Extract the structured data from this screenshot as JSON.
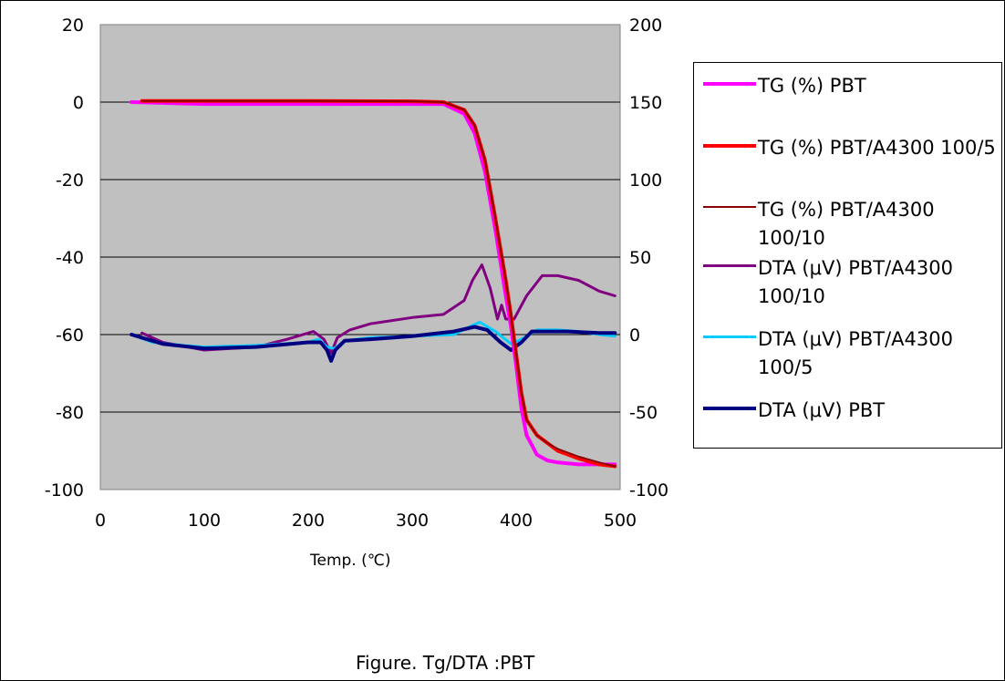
{
  "caption": "Figure. Tg/DTA :PBT",
  "chart_data": {
    "type": "line",
    "xlabel": "Temp. (℃)",
    "xlim": [
      0,
      500
    ],
    "x_ticks": [
      "0",
      "100",
      "200",
      "300",
      "400",
      "500"
    ],
    "ylim_left": [
      -100,
      20
    ],
    "y_ticks_left": [
      "20",
      "0",
      "-20",
      "-40",
      "-60",
      "-80",
      "-100"
    ],
    "ylim_right": [
      -100,
      200
    ],
    "y_ticks_right": [
      "200",
      "150",
      "100",
      "50",
      "0",
      "-50",
      "-100"
    ],
    "grid": "horizontal",
    "plot_background": "#c0c0c0",
    "legend_position": "right",
    "series": [
      {
        "name": "TG (%) PBT",
        "axis": "left",
        "color": "#ff00ff",
        "width": 4,
        "x": [
          30,
          100,
          200,
          300,
          330,
          350,
          360,
          370,
          380,
          390,
          395,
          400,
          405,
          410,
          420,
          430,
          440,
          460,
          480,
          495
        ],
        "y": [
          0,
          -0.5,
          -0.5,
          -0.5,
          -0.5,
          -3,
          -8,
          -18,
          -33,
          -50,
          -58,
          -68,
          -79,
          -86,
          -91,
          -92.5,
          -93,
          -93.5,
          -93.5,
          -93.5
        ]
      },
      {
        "name": "TG (%) PBT/A4300 100/5",
        "axis": "left",
        "color": "#ff0000",
        "width": 4,
        "x": [
          40,
          100,
          200,
          300,
          330,
          350,
          360,
          370,
          380,
          390,
          395,
          400,
          405,
          410,
          420,
          430,
          440,
          460,
          480,
          495
        ],
        "y": [
          0.3,
          0.3,
          0.3,
          0.2,
          0,
          -2,
          -6,
          -15,
          -30,
          -46,
          -55,
          -65,
          -75,
          -82,
          -86,
          -88,
          -90,
          -92,
          -93.5,
          -94
        ]
      },
      {
        "name": "TG (%) PBT/A4300 100/10",
        "axis": "left",
        "color": "#8b0000",
        "width": 2,
        "x": [
          40,
          100,
          200,
          300,
          330,
          350,
          360,
          370,
          380,
          390,
          395,
          400,
          405,
          410,
          420,
          430,
          440,
          460,
          480,
          495
        ],
        "y": [
          0.3,
          0.3,
          0.3,
          0.2,
          0,
          -2,
          -6,
          -15,
          -30,
          -46,
          -55,
          -65,
          -75,
          -82,
          -86,
          -88,
          -89.5,
          -91.5,
          -93,
          -94
        ]
      },
      {
        "name": "DTA (μV) PBT/A4300 100/10",
        "axis": "right",
        "color": "#800080",
        "width": 3,
        "x": [
          40,
          60,
          100,
          150,
          180,
          205,
          215,
          222,
          228,
          240,
          260,
          300,
          330,
          350,
          358,
          367,
          375,
          382,
          386,
          390,
          398,
          410,
          425,
          440,
          460,
          480,
          495
        ],
        "y": [
          1,
          -5,
          -10,
          -8,
          -3,
          2,
          -3,
          -12,
          -2,
          3,
          7,
          11,
          13,
          22,
          35,
          45,
          30,
          10,
          19,
          10,
          10,
          25,
          38,
          38,
          35,
          28,
          25
        ]
      },
      {
        "name": "DTA (μV) PBT/A4300 100/5",
        "axis": "right",
        "color": "#00ccff",
        "width": 3,
        "x": [
          30,
          50,
          80,
          100,
          150,
          200,
          210,
          218,
          225,
          235,
          260,
          300,
          340,
          355,
          365,
          380,
          395,
          405,
          420,
          440,
          460,
          480,
          495
        ],
        "y": [
          0,
          -5,
          -7,
          -8,
          -7,
          -5,
          -3,
          -8,
          -9,
          -4,
          -2,
          -1,
          0,
          5,
          8,
          2,
          -6,
          -3,
          3,
          3,
          2,
          0,
          -1
        ]
      },
      {
        "name": "DTA (μV) PBT",
        "axis": "right",
        "color": "#000080",
        "width": 4,
        "x": [
          30,
          60,
          100,
          150,
          200,
          212,
          218,
          222,
          226,
          235,
          260,
          300,
          340,
          360,
          372,
          385,
          395,
          405,
          415,
          430,
          450,
          480,
          495
        ],
        "y": [
          0,
          -6,
          -9,
          -8,
          -5,
          -5,
          -10,
          -17,
          -10,
          -4,
          -3,
          -1,
          2,
          5,
          3,
          -5,
          -10,
          -5,
          2,
          2,
          2,
          1,
          1
        ]
      }
    ]
  }
}
